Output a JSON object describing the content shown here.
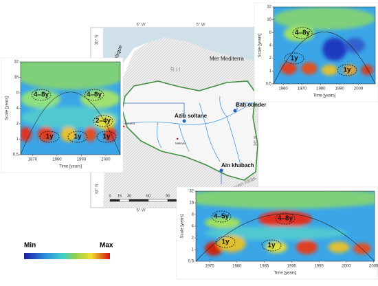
{
  "map": {
    "lon_labels_top": [
      "6° W",
      "5° W"
    ],
    "lon_label_bottom": "6° W",
    "lat_labels": [
      "36° N",
      "34° N",
      "33° N"
    ],
    "sea_labels": [
      "Mer Mediterra",
      "an Atlantique"
    ],
    "region_labels": [
      "R i f",
      "Moyen Atlas"
    ],
    "stations": [
      "Azib soltane",
      "Bab ounder",
      "Ain khabach"
    ],
    "cities": [
      "Kenitra",
      "Meknès"
    ],
    "scale_bar": {
      "ticks": [
        0,
        15,
        30,
        60,
        90,
        120
      ],
      "unit": "Km"
    }
  },
  "panels": [
    {
      "y_label": "Scale [years]",
      "x_label": "Time [years]",
      "yticks": [
        0.5,
        1,
        2,
        4,
        8,
        16,
        32
      ],
      "xticks": [
        1970,
        1980,
        1990,
        2000
      ],
      "annotations": [
        "4–8y",
        "4–8y",
        "2–4y",
        "1y",
        "1y",
        "1y"
      ]
    },
    {
      "y_label": "Scale [years]",
      "x_label": "Time [years]",
      "yticks": [
        0.5,
        1,
        2,
        4,
        8,
        16,
        32
      ],
      "xticks": [
        1960,
        1970,
        1980,
        1990,
        2000
      ],
      "annotations": [
        "4–8y",
        "1y",
        "1y"
      ]
    },
    {
      "y_label": "Scale [years]",
      "x_label": "Time [years]",
      "yticks": [
        0.5,
        1,
        2,
        4,
        8,
        16,
        32
      ],
      "xticks": [
        1975,
        1980,
        1985,
        1990,
        1995,
        2000,
        2005
      ],
      "annotations": [
        "4–5y",
        "4–8y",
        "1y",
        "1y"
      ]
    }
  ],
  "colorbar": {
    "min_label": "Min",
    "max_label": "Max"
  }
}
